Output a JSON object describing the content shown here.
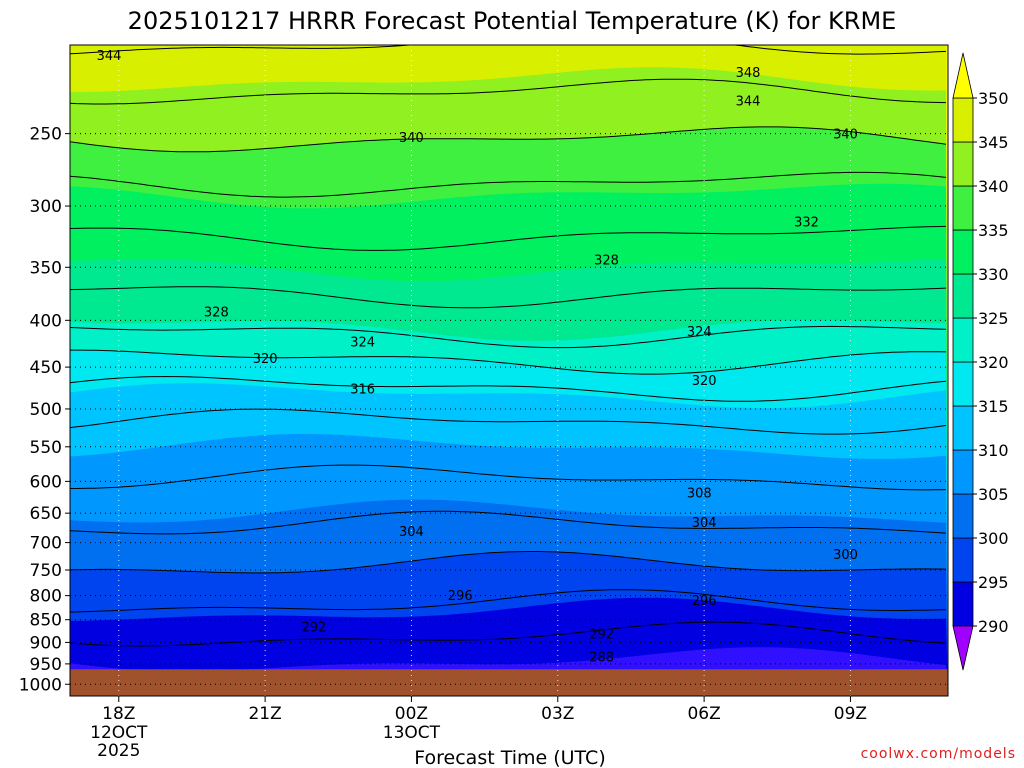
{
  "chart_data": {
    "type": "heatmap",
    "title": "2025101217 HRRR Forecast Potential Temperature (K) for KRME",
    "xlabel": "Forecast Time (UTC)",
    "ylabel": "",
    "x_ticks": [
      {
        "hour": 0,
        "label": "18Z",
        "sub1": "12OCT",
        "sub2": "2025"
      },
      {
        "hour": 3,
        "label": "21Z",
        "sub1": "",
        "sub2": ""
      },
      {
        "hour": 6,
        "label": "00Z",
        "sub1": "13OCT",
        "sub2": ""
      },
      {
        "hour": 9,
        "label": "03Z",
        "sub1": "",
        "sub2": ""
      },
      {
        "hour": 12,
        "label": "06Z",
        "sub1": "",
        "sub2": ""
      },
      {
        "hour": 15,
        "label": "09Z",
        "sub1": "",
        "sub2": ""
      }
    ],
    "xlim": [
      -1,
      17
    ],
    "y_ticks": [
      250,
      300,
      350,
      400,
      450,
      500,
      550,
      600,
      650,
      700,
      750,
      800,
      850,
      900,
      950,
      1000
    ],
    "ylim": [
      200,
      1030
    ],
    "y_scale": "log",
    "surface_pressure_hPa": 963,
    "colorbar": {
      "levels": [
        285,
        290,
        295,
        300,
        305,
        310,
        315,
        320,
        325,
        330,
        335,
        340,
        345,
        350,
        355
      ],
      "colors": [
        "#a000ff",
        "#3010ff",
        "#0000e0",
        "#0044f0",
        "#0070f0",
        "#0098ff",
        "#00c4ff",
        "#00e8f0",
        "#00f0c8",
        "#00e890",
        "#00f060",
        "#40f040",
        "#90f020",
        "#d8f000",
        "#ffe000",
        "#ffff00"
      ],
      "labels": [
        "290",
        "295",
        "300",
        "305",
        "310",
        "315",
        "320",
        "325",
        "330",
        "335",
        "340",
        "345",
        "350"
      ]
    },
    "contour_interval_K": 4,
    "contour_labels": [
      {
        "value": 344,
        "hour": -0.2,
        "p": 205
      },
      {
        "value": 348,
        "hour": 12.9,
        "p": 214
      },
      {
        "value": 344,
        "hour": 12.9,
        "p": 230
      },
      {
        "value": 340,
        "hour": 6.0,
        "p": 252
      },
      {
        "value": 340,
        "hour": 14.9,
        "p": 250
      },
      {
        "value": 332,
        "hour": 14.1,
        "p": 312
      },
      {
        "value": 328,
        "hour": 10.0,
        "p": 343
      },
      {
        "value": 328,
        "hour": 2.0,
        "p": 391
      },
      {
        "value": 324,
        "hour": 5.0,
        "p": 422
      },
      {
        "value": 324,
        "hour": 11.9,
        "p": 411
      },
      {
        "value": 320,
        "hour": 3.0,
        "p": 440
      },
      {
        "value": 320,
        "hour": 12.0,
        "p": 465
      },
      {
        "value": 316,
        "hour": 5.0,
        "p": 475
      },
      {
        "value": 308,
        "hour": 11.9,
        "p": 617
      },
      {
        "value": 304,
        "hour": 6.0,
        "p": 680
      },
      {
        "value": 304,
        "hour": 12.0,
        "p": 665
      },
      {
        "value": 300,
        "hour": 14.9,
        "p": 720
      },
      {
        "value": 296,
        "hour": 7.0,
        "p": 799
      },
      {
        "value": 296,
        "hour": 12.0,
        "p": 809
      },
      {
        "value": 292,
        "hour": 4.0,
        "p": 865
      },
      {
        "value": 292,
        "hour": 9.9,
        "p": 880
      },
      {
        "value": 288,
        "hour": 9.9,
        "p": 933
      }
    ],
    "theta_profile": [
      {
        "p": 950,
        "theta": 289.8
      },
      {
        "p": 900,
        "theta": 291.2
      },
      {
        "p": 850,
        "theta": 294.0
      },
      {
        "p": 800,
        "theta": 297.0
      },
      {
        "p": 750,
        "theta": 299.5
      },
      {
        "p": 700,
        "theta": 302.5
      },
      {
        "p": 650,
        "theta": 305.0
      },
      {
        "p": 600,
        "theta": 307.8
      },
      {
        "p": 550,
        "theta": 310.0
      },
      {
        "p": 500,
        "theta": 313.0
      },
      {
        "p": 450,
        "theta": 319.0
      },
      {
        "p": 400,
        "theta": 326.0
      },
      {
        "p": 350,
        "theta": 330.0
      },
      {
        "p": 300,
        "theta": 334.0
      },
      {
        "p": 250,
        "theta": 340.5
      },
      {
        "p": 200,
        "theta": 348.0
      }
    ]
  },
  "credit": "coolwx.com/models"
}
